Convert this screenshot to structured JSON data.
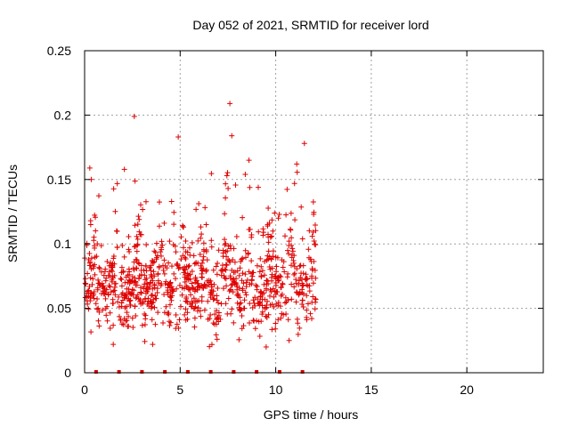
{
  "chart_data": {
    "type": "scatter",
    "title": "Day 052 of 2021, SRMTID for receiver lord",
    "xlabel": "GPS time / hours",
    "ylabel": "SRMTID / TECUs",
    "xlim": [
      0,
      24
    ],
    "ylim": [
      0,
      0.25
    ],
    "x_ticks": [
      0,
      5,
      10,
      15,
      20
    ],
    "x_tick_labels": [
      "0",
      "5",
      "10",
      "15",
      "20"
    ],
    "y_ticks": [
      0,
      0.05,
      0.1,
      0.15,
      0.2,
      0.25
    ],
    "y_tick_labels": [
      "0",
      "0.05",
      "0.1",
      "0.15",
      "0.2",
      "0.25"
    ],
    "grid": true,
    "marker": "+",
    "color": "#e00000",
    "data_range_hours": [
      0,
      12.1
    ],
    "approx_points": 1000,
    "series": [
      {
        "name": "SRMTID",
        "highlighted_points": [
          {
            "x": 2.6,
            "y": 0.199
          },
          {
            "x": 4.9,
            "y": 0.183
          },
          {
            "x": 7.6,
            "y": 0.209
          },
          {
            "x": 7.7,
            "y": 0.184
          },
          {
            "x": 11.5,
            "y": 0.178
          },
          {
            "x": 11.1,
            "y": 0.162
          },
          {
            "x": 8.6,
            "y": 0.165
          },
          {
            "x": 1.5,
            "y": 0.022
          },
          {
            "x": 9.5,
            "y": 0.02
          },
          {
            "x": 10.7,
            "y": 0.025
          }
        ]
      },
      {
        "name": "zero markers",
        "x": [
          0.6,
          1.8,
          3.0,
          4.2,
          5.4,
          6.6,
          7.8,
          9.0,
          10.2,
          11.4
        ],
        "y": [
          0,
          0,
          0,
          0,
          0,
          0,
          0,
          0,
          0,
          0
        ]
      }
    ]
  }
}
